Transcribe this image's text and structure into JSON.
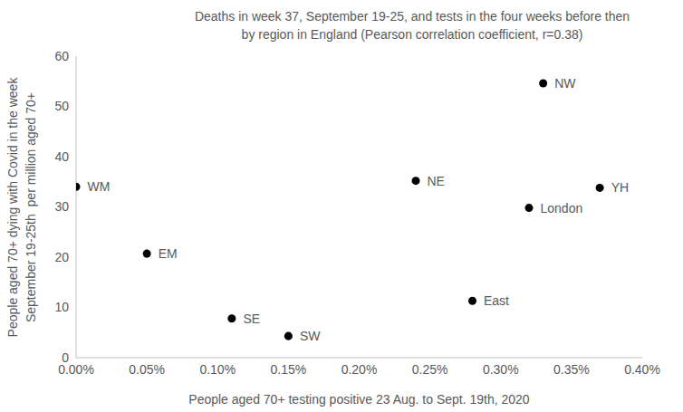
{
  "chart_data": {
    "type": "scatter",
    "title": [
      "Deaths in week 37, September 19-25, and tests in the four weeks before then",
      "by region in England (Pearson correlation coefficient, r=0.38)"
    ],
    "x_label": "People aged 70+ testing positive 23 Aug. to Sept. 19th, 2020",
    "y_label": [
      "People aged 70+ dying with Covid in the week",
      "September 19-25th  per million aged 70+"
    ],
    "labels": [
      "WM",
      "EM",
      "SE",
      "SW",
      "NE",
      "East",
      "London",
      "NW",
      "YH"
    ],
    "x": [
      0.0,
      0.05,
      0.11,
      0.15,
      0.24,
      0.28,
      0.32,
      0.33,
      0.37
    ],
    "values": [
      34.0,
      20.7,
      7.8,
      4.3,
      35.2,
      11.3,
      29.8,
      54.6,
      33.8
    ],
    "color": "#000000",
    "marker": "circle",
    "xlim": [
      0,
      0.4
    ],
    "xticks": [
      {
        "value": 0,
        "label": "0.00%"
      },
      {
        "value": 0.05,
        "label": "0.05%"
      },
      {
        "value": 0.1,
        "label": "0.10%"
      },
      {
        "value": 0.15,
        "label": "0.15%"
      },
      {
        "value": 0.2,
        "label": "0.20%"
      },
      {
        "value": 0.25,
        "label": "0.25%"
      },
      {
        "value": 0.3,
        "label": "0.30%"
      },
      {
        "value": 0.35,
        "label": "0.35%"
      },
      {
        "value": 0.4,
        "label": "0.40%"
      }
    ],
    "ylim": [
      0,
      60
    ],
    "yticks": [
      0,
      10,
      20,
      30,
      40,
      50,
      60
    ],
    "grid": false
  }
}
